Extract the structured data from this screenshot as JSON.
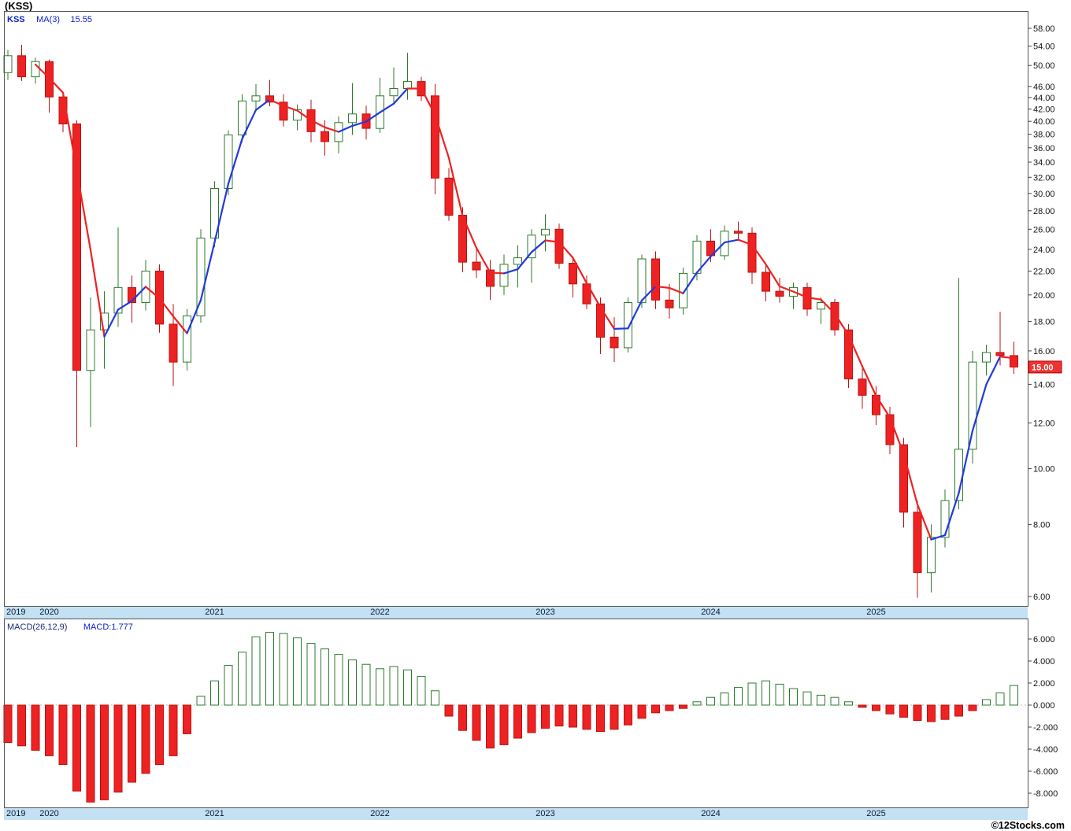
{
  "header": {
    "title": "(KSS)",
    "legend": {
      "symbol": "KSS",
      "ma_label": "MA(3)",
      "ma_value": "15.55"
    }
  },
  "footer": {
    "copyright": "©12Stocks.com"
  },
  "colors": {
    "up_stroke": "#2d7a2d",
    "up_fill": "#ffffff",
    "down_fill": "#ee2222",
    "down_stroke": "#bb1111",
    "ma_up": "#2238dd",
    "ma_down": "#ee2222",
    "band_bg": "#c3e1f3",
    "last_price_bg": "#ee3333"
  },
  "price_axis": {
    "ticks": [
      "58.00",
      "54.00",
      "50.00",
      "46.00",
      "44.00",
      "42.00",
      "40.00",
      "38.00",
      "36.00",
      "34.00",
      "32.00",
      "30.00",
      "28.00",
      "26.00",
      "24.00",
      "22.00",
      "20.00",
      "18.00",
      "16.00",
      "14.00",
      "12.00",
      "10.00",
      "8.00",
      "6.00"
    ],
    "last_price": "15.00"
  },
  "macd_axis": {
    "ticks": [
      "6.000",
      "4.000",
      "2.000",
      "0.000",
      "-2.000",
      "-4.000",
      "-6.000",
      "-8.000"
    ]
  },
  "macd_legend": {
    "label": "MACD(26,12,9)",
    "value_label": "MACD:1.777"
  },
  "years": [
    {
      "label": "2019",
      "month_index": 0,
      "align": "left"
    },
    {
      "label": "2020",
      "month_index": 3,
      "align": "center"
    },
    {
      "label": "2021",
      "month_index": 15,
      "align": "center"
    },
    {
      "label": "2022",
      "month_index": 27,
      "align": "center"
    },
    {
      "label": "2023",
      "month_index": 39,
      "align": "center"
    },
    {
      "label": "2024",
      "month_index": 51,
      "align": "center"
    },
    {
      "label": "2025",
      "month_index": 63,
      "align": "center"
    }
  ],
  "chart_data": [
    {
      "type": "candlestick",
      "title": "KSS monthly price with MA(3)",
      "y_scale": "log",
      "ylim": [
        6,
        58
      ],
      "grid": false,
      "ma_period": 3,
      "candles": [
        [
          "2019-10",
          48.6,
          53.2,
          47.2,
          52.0
        ],
        [
          "2019-11",
          52.0,
          54.3,
          47.0,
          47.8
        ],
        [
          "2019-12",
          47.8,
          51.6,
          46.5,
          50.8
        ],
        [
          "2020-01",
          50.8,
          51.2,
          41.4,
          44.1
        ],
        [
          "2020-02",
          44.1,
          45.0,
          38.3,
          39.6
        ],
        [
          "2020-03",
          39.6,
          40.2,
          10.9,
          14.8
        ],
        [
          "2020-04",
          14.8,
          19.8,
          11.8,
          17.4
        ],
        [
          "2020-05",
          17.4,
          20.3,
          14.9,
          18.6
        ],
        [
          "2020-06",
          18.6,
          26.2,
          17.6,
          20.6
        ],
        [
          "2020-07",
          20.6,
          21.6,
          17.9,
          19.4
        ],
        [
          "2020-08",
          19.4,
          23.0,
          18.8,
          22.0
        ],
        [
          "2020-09",
          22.0,
          22.6,
          17.2,
          17.8
        ],
        [
          "2020-10",
          17.8,
          19.3,
          13.9,
          15.3
        ],
        [
          "2020-11",
          15.3,
          18.9,
          14.8,
          18.4
        ],
        [
          "2020-12",
          18.4,
          26.0,
          17.9,
          25.1
        ],
        [
          "2021-01",
          25.1,
          31.5,
          24.2,
          30.6
        ],
        [
          "2021-02",
          30.6,
          38.6,
          29.8,
          37.9
        ],
        [
          "2021-03",
          37.9,
          44.6,
          36.8,
          43.4
        ],
        [
          "2021-04",
          43.4,
          46.4,
          41.6,
          44.3
        ],
        [
          "2021-05",
          44.3,
          47.2,
          42.5,
          43.2
        ],
        [
          "2021-06",
          43.2,
          44.6,
          39.2,
          40.2
        ],
        [
          "2021-07",
          40.2,
          42.8,
          38.6,
          41.9
        ],
        [
          "2021-08",
          41.9,
          43.6,
          36.8,
          38.4
        ],
        [
          "2021-09",
          38.4,
          40.2,
          34.9,
          36.9
        ],
        [
          "2021-10",
          36.9,
          40.8,
          35.2,
          39.8
        ],
        [
          "2021-11",
          39.8,
          46.6,
          37.9,
          41.2
        ],
        [
          "2021-12",
          41.2,
          42.6,
          37.2,
          38.9
        ],
        [
          "2022-01",
          38.9,
          47.6,
          38.2,
          44.3
        ],
        [
          "2022-02",
          44.3,
          49.6,
          42.9,
          45.6
        ],
        [
          "2022-03",
          45.6,
          52.6,
          43.6,
          46.9
        ],
        [
          "2022-04",
          46.9,
          47.8,
          43.4,
          44.3
        ],
        [
          "2022-05",
          44.3,
          46.4,
          29.9,
          31.9
        ],
        [
          "2022-06",
          31.9,
          33.2,
          26.9,
          27.5
        ],
        [
          "2022-07",
          27.5,
          28.4,
          21.9,
          22.8
        ],
        [
          "2022-08",
          22.8,
          24.1,
          21.4,
          22.1
        ],
        [
          "2022-09",
          22.1,
          23.0,
          19.6,
          20.7
        ],
        [
          "2022-10",
          20.7,
          23.5,
          20.0,
          22.6
        ],
        [
          "2022-11",
          22.6,
          24.4,
          20.6,
          23.2
        ],
        [
          "2022-12",
          23.2,
          26.0,
          21.0,
          25.4
        ],
        [
          "2023-01",
          25.4,
          27.6,
          23.8,
          26.0
        ],
        [
          "2023-02",
          26.0,
          26.6,
          22.2,
          22.7
        ],
        [
          "2023-03",
          22.7,
          23.3,
          19.8,
          20.9
        ],
        [
          "2023-04",
          20.9,
          21.6,
          18.9,
          19.3
        ],
        [
          "2023-05",
          19.3,
          19.8,
          15.8,
          16.9
        ],
        [
          "2023-06",
          16.9,
          18.3,
          15.3,
          16.2
        ],
        [
          "2023-07",
          16.2,
          19.8,
          15.9,
          19.4
        ],
        [
          "2023-08",
          19.4,
          23.5,
          19.0,
          23.1
        ],
        [
          "2023-09",
          23.1,
          23.8,
          18.9,
          19.6
        ],
        [
          "2023-10",
          19.6,
          20.9,
          18.2,
          19.0
        ],
        [
          "2023-11",
          19.0,
          22.3,
          18.5,
          21.8
        ],
        [
          "2023-12",
          21.8,
          25.4,
          21.2,
          24.8
        ],
        [
          "2024-01",
          24.8,
          26.0,
          22.8,
          23.4
        ],
        [
          "2024-02",
          23.4,
          26.4,
          23.0,
          25.8
        ],
        [
          "2024-03",
          25.8,
          26.8,
          24.9,
          25.6
        ],
        [
          "2024-04",
          25.6,
          26.2,
          20.9,
          21.9
        ],
        [
          "2024-05",
          21.9,
          22.6,
          19.5,
          20.3
        ],
        [
          "2024-06",
          20.3,
          21.4,
          19.4,
          19.9
        ],
        [
          "2024-07",
          19.9,
          21.0,
          18.9,
          20.6
        ],
        [
          "2024-08",
          20.6,
          21.0,
          18.4,
          18.9
        ],
        [
          "2024-09",
          18.9,
          19.8,
          17.8,
          19.4
        ],
        [
          "2024-10",
          19.4,
          19.7,
          17.0,
          17.4
        ],
        [
          "2024-11",
          17.4,
          17.8,
          13.8,
          14.3
        ],
        [
          "2024-12",
          14.3,
          14.9,
          12.7,
          13.4
        ],
        [
          "2025-01",
          13.4,
          13.9,
          11.9,
          12.4
        ],
        [
          "2025-02",
          12.4,
          12.8,
          10.6,
          11.0
        ],
        [
          "2025-03",
          11.0,
          11.3,
          7.9,
          8.4
        ],
        [
          "2025-04",
          8.4,
          8.8,
          5.97,
          6.6
        ],
        [
          "2025-05",
          6.6,
          8.0,
          6.1,
          7.6
        ],
        [
          "2025-06",
          7.6,
          9.2,
          7.3,
          8.8
        ],
        [
          "2025-07",
          8.8,
          21.4,
          8.5,
          10.8
        ],
        [
          "2025-08",
          10.8,
          16.0,
          10.2,
          15.3
        ],
        [
          "2025-09",
          15.3,
          16.4,
          14.5,
          15.9
        ],
        [
          "2025-10",
          15.9,
          18.7,
          15.1,
          15.7
        ],
        [
          "2025-11",
          15.7,
          16.6,
          14.6,
          15.0
        ]
      ]
    },
    {
      "type": "bar",
      "title": "MACD(26,12,9) histogram",
      "ylim": [
        -9,
        7
      ],
      "grid": false,
      "values": [
        -3.4,
        -3.7,
        -4.1,
        -4.6,
        -5.4,
        -7.8,
        -8.8,
        -8.6,
        -7.9,
        -7.0,
        -6.2,
        -5.4,
        -4.6,
        -2.6,
        0.8,
        2.2,
        3.6,
        4.8,
        6.2,
        6.6,
        6.5,
        6.1,
        5.6,
        5.1,
        4.6,
        4.1,
        3.7,
        3.3,
        3.5,
        3.2,
        2.6,
        1.3,
        -1.0,
        -2.3,
        -3.2,
        -3.9,
        -3.6,
        -3.0,
        -2.5,
        -2.1,
        -1.9,
        -2.0,
        -2.2,
        -2.4,
        -2.2,
        -1.8,
        -1.2,
        -0.7,
        -0.5,
        -0.3,
        0.3,
        0.7,
        1.1,
        1.6,
        2.0,
        2.2,
        1.9,
        1.5,
        1.2,
        0.9,
        0.7,
        0.3,
        -0.2,
        -0.5,
        -0.8,
        -1.1,
        -1.4,
        -1.5,
        -1.3,
        -1.0,
        -0.5,
        0.5,
        1.1,
        1.777
      ]
    }
  ]
}
